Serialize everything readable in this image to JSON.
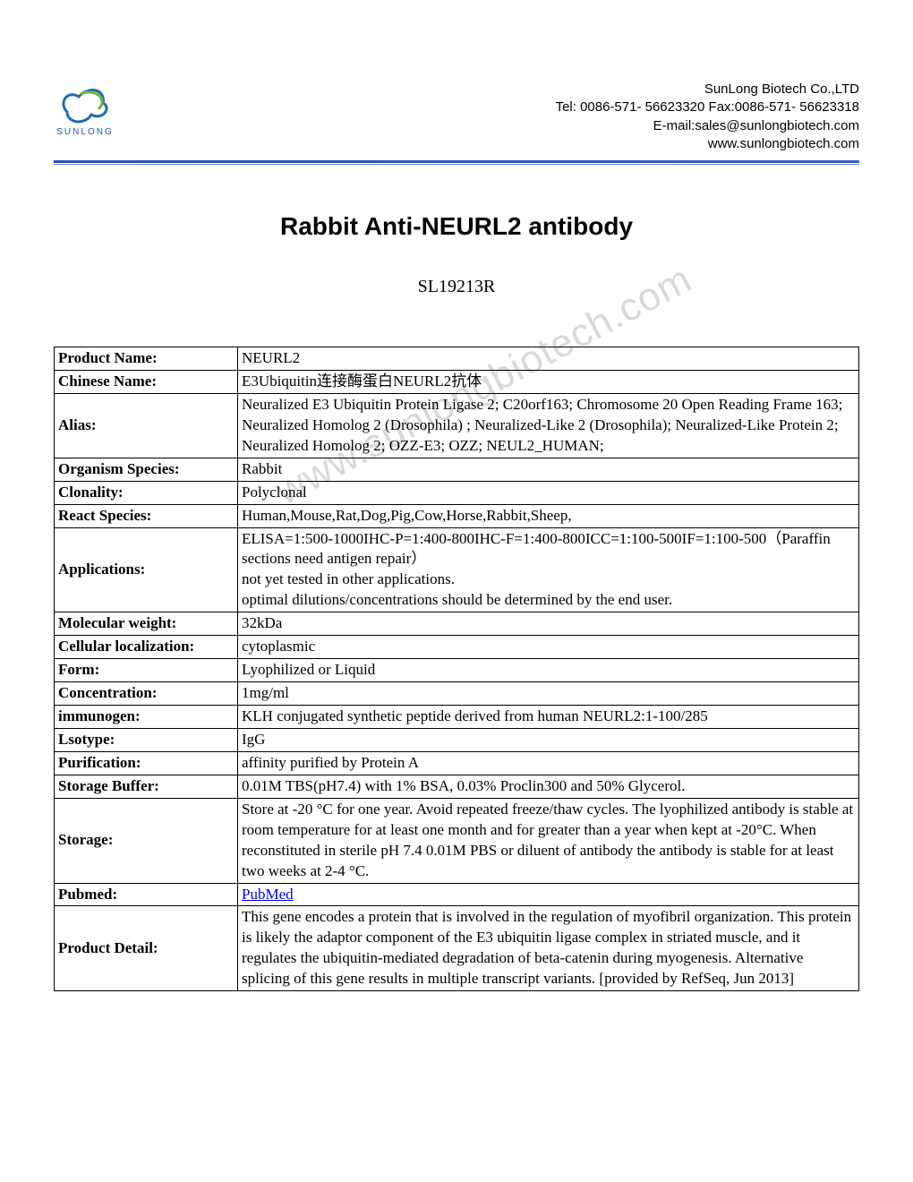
{
  "company": {
    "name": "SunLong Biotech Co.,LTD",
    "tel": "Tel: 0086-571- 56623320 Fax:0086-571- 56623318",
    "email": "E-mail:sales@sunlongbiotech.com",
    "web": "www.sunlongbiotech.com",
    "logo_label": "SUNLONG",
    "logo_colors": {
      "blue": "#1e6bb8",
      "green": "#6fb53c"
    }
  },
  "title": "Rabbit Anti-NEURL2 antibody",
  "sku": "SL19213R",
  "watermark": "www.sunlongbiotech.com",
  "rows": [
    {
      "label": "Product Name:",
      "value": "NEURL2"
    },
    {
      "label": "Chinese Name:",
      "value": "E3Ubiquitin连接酶蛋白NEURL2抗体"
    },
    {
      "label": "Alias:",
      "value": "Neuralized E3 Ubiquitin Protein Ligase 2; C20orf163; Chromosome 20 Open Reading Frame 163; Neuralized Homolog 2 (Drosophila) ; Neuralized-Like 2 (Drosophila); Neuralized-Like Protein 2; Neuralized Homolog 2; OZZ-E3; OZZ; NEUL2_HUMAN;"
    },
    {
      "label": "Organism Species:",
      "value": "Rabbit"
    },
    {
      "label": "Clonality:",
      "value": "Polyclonal"
    },
    {
      "label": "React Species:",
      "value": "Human,Mouse,Rat,Dog,Pig,Cow,Horse,Rabbit,Sheep,"
    },
    {
      "label": "Applications:",
      "value": "ELISA=1:500-1000IHC-P=1:400-800IHC-F=1:400-800ICC=1:100-500IF=1:100-500（Paraffin sections need antigen repair）\nnot yet tested in other applications.\noptimal dilutions/concentrations should be determined by the end user."
    },
    {
      "label": "Molecular weight:",
      "value": "32kDa"
    },
    {
      "label": "Cellular localization:",
      "value": "cytoplasmic"
    },
    {
      "label": "Form:",
      "value": "Lyophilized or Liquid"
    },
    {
      "label": "Concentration:",
      "value": "1mg/ml"
    },
    {
      "label": "immunogen:",
      "value": "KLH conjugated synthetic peptide derived from human NEURL2:1-100/285"
    },
    {
      "label": "Lsotype:",
      "value": "IgG"
    },
    {
      "label": "Purification:",
      "value": "affinity purified by Protein A"
    },
    {
      "label": "Storage Buffer:",
      "value": "0.01M TBS(pH7.4) with 1% BSA, 0.03% Proclin300 and 50% Glycerol."
    },
    {
      "label": "Storage:",
      "value": "Store at -20 °C for one year. Avoid repeated freeze/thaw cycles. The lyophilized antibody is stable at room temperature for at least one month and for greater than a year when kept at -20°C. When reconstituted in sterile pH 7.4 0.01M PBS or diluent of antibody the antibody is stable for at least two weeks at 2-4 °C."
    },
    {
      "label": "Pubmed:",
      "value": "PubMed",
      "is_link": true
    },
    {
      "label": "Product Detail:",
      "value": "This gene encodes a protein that is involved in the regulation of myofibril organization. This protein is likely the adaptor component of the E3 ubiquitin ligase complex in striated muscle, and it regulates the ubiquitin-mediated degradation of beta-catenin during myogenesis. Alternative splicing of this gene results in multiple transcript variants. [provided by RefSeq, Jun 2013]"
    }
  ]
}
